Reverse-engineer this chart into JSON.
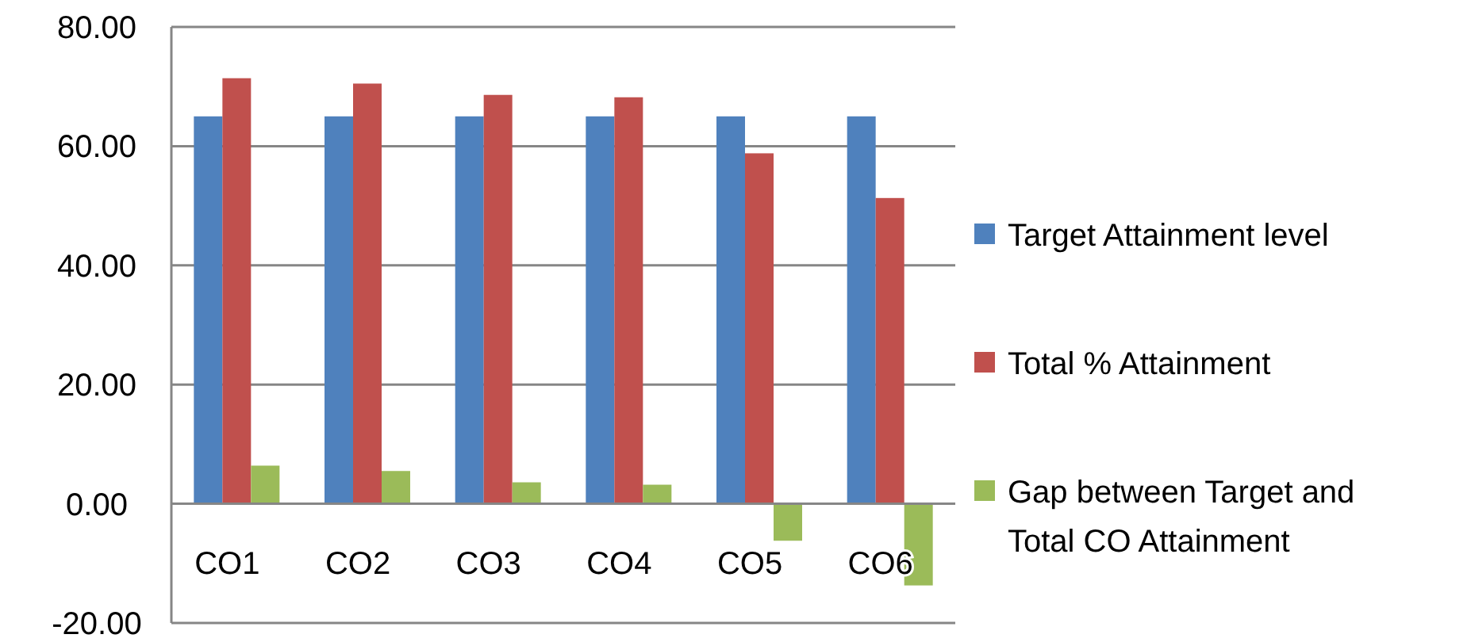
{
  "chart_data": {
    "type": "bar",
    "categories": [
      "CO1",
      "CO2",
      "CO3",
      "CO4",
      "CO5",
      "CO6"
    ],
    "series": [
      {
        "name": "Target Attainment level",
        "color": "#4f81bd",
        "values": [
          65,
          65,
          65,
          65,
          65,
          65
        ]
      },
      {
        "name": "Total % Attainment",
        "color": "#c0504d",
        "values": [
          71.4,
          70.5,
          68.6,
          68.2,
          58.8,
          51.3
        ]
      },
      {
        "name": "Gap between Target and Total CO Attainment",
        "color": "#9bbb59",
        "values": [
          6.4,
          5.5,
          3.6,
          3.2,
          -6.2,
          -13.7
        ]
      }
    ],
    "ylim": [
      -20,
      80
    ],
    "yticks": [
      {
        "value": -20,
        "label": "-20.00"
      },
      {
        "value": 0,
        "label": "0.00"
      },
      {
        "value": 20,
        "label": "20.00"
      },
      {
        "value": 40,
        "label": "40.00"
      },
      {
        "value": 60,
        "label": "60.00"
      },
      {
        "value": 80,
        "label": "80.00"
      }
    ],
    "grid": "y",
    "legend": "right"
  }
}
